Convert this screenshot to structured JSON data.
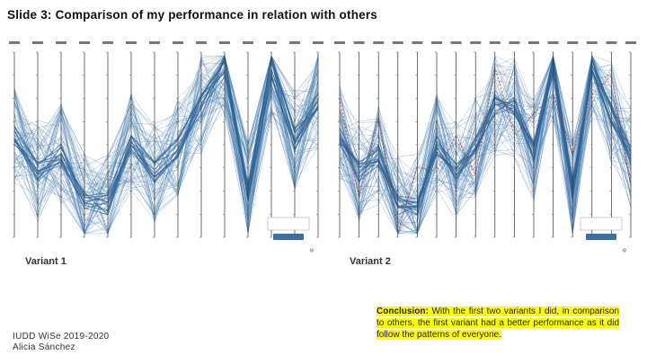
{
  "slide": {
    "title": "Slide 3: Comparison of my performance in relation with others"
  },
  "panels": {
    "left": {
      "label": "Variant 1",
      "axes": 14,
      "corner": "φ"
    },
    "right": {
      "label": "Variant 2",
      "axes": 16,
      "corner": "φ"
    }
  },
  "footer": {
    "course": "IUDD WiSe 2019-2020",
    "author": "Alicia Sánchez"
  },
  "conclusion": {
    "lead": "Conclusion:",
    "text": "With the first two variants I did, in comparison to others, the first variant had a better performance as it did follow the patterns of everyone."
  },
  "colors": {
    "line": "#4a7fb0",
    "highlight": "#c0392b",
    "axis": "#333333",
    "background": "#ffffff",
    "marker": "#ffff00"
  }
}
